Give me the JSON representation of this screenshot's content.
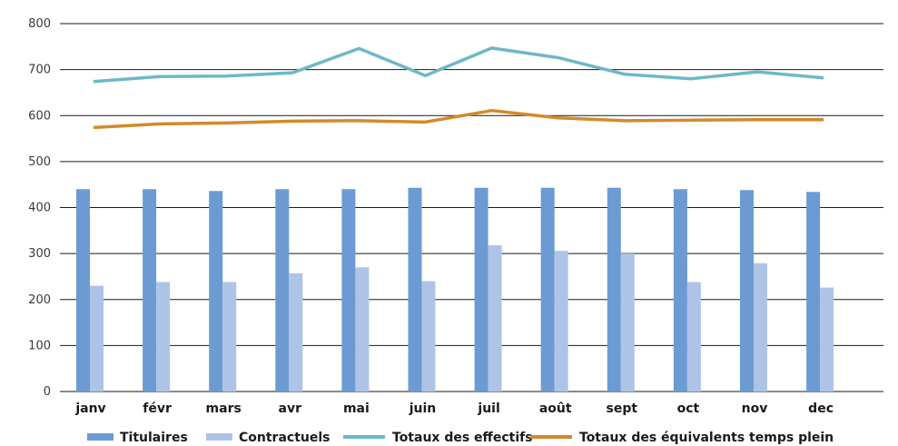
{
  "chart_data": {
    "type": "bar",
    "categories": [
      "janv",
      "févr",
      "mars",
      "avr",
      "mai",
      "juin",
      "juil",
      "août",
      "sept",
      "oct",
      "nov",
      "dec"
    ],
    "series": [
      {
        "name": "Titulaires",
        "kind": "bar",
        "color": "#6b9bd2",
        "values": [
          440,
          440,
          436,
          440,
          440,
          443,
          443,
          443,
          443,
          440,
          438,
          434
        ]
      },
      {
        "name": "Contractuels",
        "kind": "bar",
        "color": "#aec4e6",
        "values": [
          230,
          238,
          238,
          257,
          270,
          240,
          318,
          306,
          300,
          238,
          279,
          226
        ]
      },
      {
        "name": "Totaux des effectifs",
        "kind": "line",
        "color": "#6db8c8",
        "values": [
          674,
          685,
          686,
          693,
          746,
          687,
          747,
          726,
          690,
          680,
          695,
          682
        ]
      },
      {
        "name": "Totaux des équivalents temps plein",
        "kind": "line",
        "color": "#d38a2a",
        "values": [
          574,
          582,
          584,
          588,
          589,
          586,
          611,
          595,
          589,
          590,
          591,
          591
        ]
      }
    ],
    "yticks": [
      0,
      100,
      200,
      300,
      400,
      500,
      600,
      700,
      800
    ],
    "ylim": [
      0,
      800
    ],
    "grid": true,
    "legend": "bottom"
  }
}
